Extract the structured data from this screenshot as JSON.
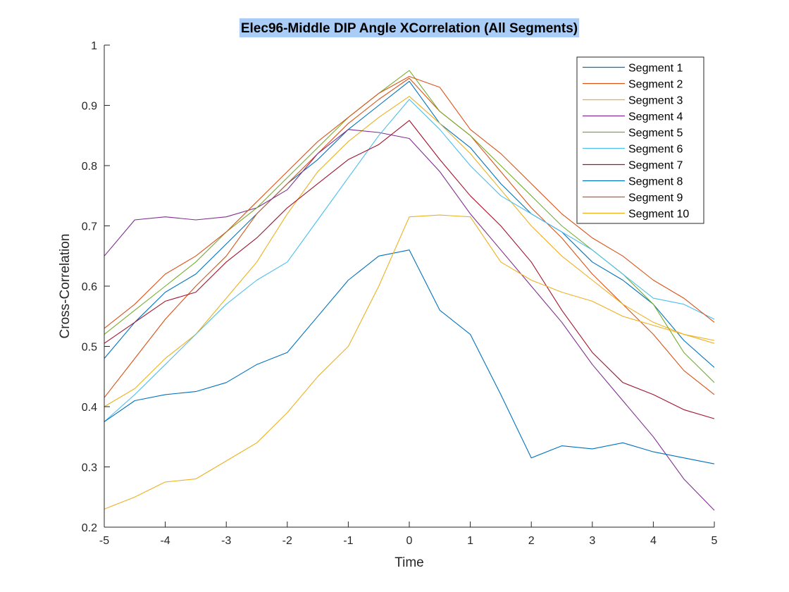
{
  "chart_data": {
    "type": "line",
    "title": "Elec96-Middle DIP Angle XCorrelation (All Segments)",
    "title_highlight_color": "#a9cdf7",
    "xlabel": "Time",
    "ylabel": "Cross-Correlation",
    "xlim": [
      -5,
      5
    ],
    "ylim": [
      0.2,
      1
    ],
    "xticks": [
      -5,
      -4,
      -3,
      -2,
      -1,
      0,
      1,
      2,
      3,
      4,
      5
    ],
    "xtick_labels": [
      "-5",
      "-4",
      "-3",
      "-2",
      "-1",
      "0",
      "1",
      "2",
      "3",
      "4",
      "5"
    ],
    "yticks": [
      0.2,
      0.3,
      0.4,
      0.5,
      0.6,
      0.7,
      0.8,
      0.9,
      1
    ],
    "ytick_labels": [
      "0.2",
      "0.3",
      "0.4",
      "0.5",
      "0.6",
      "0.7",
      "0.8",
      "0.9",
      "1"
    ],
    "grid": false,
    "legend_position": "top-right",
    "x": [
      -5,
      -4.5,
      -4,
      -3.5,
      -3,
      -2.5,
      -2,
      -1.5,
      -1,
      -0.5,
      0,
      0.5,
      1,
      1.5,
      2,
      2.5,
      3,
      3.5,
      4,
      4.5,
      5
    ],
    "series": [
      {
        "name": "Segment 1",
        "color": "#0072bd",
        "values": [
          0.48,
          0.54,
          0.59,
          0.62,
          0.67,
          0.72,
          0.77,
          0.81,
          0.86,
          0.9,
          0.94,
          0.87,
          0.83,
          0.77,
          0.72,
          0.69,
          0.64,
          0.61,
          0.57,
          0.51,
          0.465
        ]
      },
      {
        "name": "Segment 2",
        "color": "#d95319",
        "values": [
          0.415,
          0.48,
          0.545,
          0.6,
          0.65,
          0.72,
          0.77,
          0.82,
          0.87,
          0.91,
          0.945,
          0.89,
          0.85,
          0.79,
          0.73,
          0.68,
          0.62,
          0.57,
          0.52,
          0.46,
          0.42
        ]
      },
      {
        "name": "Segment 3",
        "color": "#edb120",
        "values": [
          0.4,
          0.43,
          0.48,
          0.52,
          0.58,
          0.64,
          0.72,
          0.79,
          0.84,
          0.88,
          0.915,
          0.87,
          0.82,
          0.76,
          0.7,
          0.65,
          0.61,
          0.57,
          0.54,
          0.52,
          0.51
        ]
      },
      {
        "name": "Segment 4",
        "color": "#7e2f8e",
        "values": [
          0.65,
          0.71,
          0.715,
          0.71,
          0.715,
          0.73,
          0.76,
          0.82,
          0.86,
          0.855,
          0.845,
          0.79,
          0.72,
          0.66,
          0.6,
          0.54,
          0.47,
          0.41,
          0.35,
          0.28,
          0.228
        ]
      },
      {
        "name": "Segment 5",
        "color": "#77ac30",
        "values": [
          0.52,
          0.56,
          0.6,
          0.64,
          0.69,
          0.73,
          0.78,
          0.83,
          0.88,
          0.92,
          0.958,
          0.89,
          0.85,
          0.8,
          0.75,
          0.7,
          0.66,
          0.62,
          0.57,
          0.49,
          0.44
        ]
      },
      {
        "name": "Segment 6",
        "color": "#4dbeee",
        "values": [
          0.375,
          0.42,
          0.47,
          0.52,
          0.57,
          0.61,
          0.64,
          0.71,
          0.78,
          0.85,
          0.91,
          0.86,
          0.8,
          0.75,
          0.72,
          0.69,
          0.66,
          0.62,
          0.58,
          0.57,
          0.545
        ]
      },
      {
        "name": "Segment 7",
        "color": "#a2142f",
        "values": [
          0.505,
          0.54,
          0.575,
          0.59,
          0.64,
          0.68,
          0.73,
          0.77,
          0.81,
          0.835,
          0.875,
          0.81,
          0.75,
          0.7,
          0.64,
          0.56,
          0.49,
          0.44,
          0.42,
          0.395,
          0.38
        ]
      },
      {
        "name": "Segment 8",
        "color": "#0072bd",
        "values": [
          0.375,
          0.41,
          0.42,
          0.425,
          0.44,
          0.47,
          0.49,
          0.55,
          0.61,
          0.65,
          0.66,
          0.56,
          0.52,
          0.42,
          0.315,
          0.335,
          0.33,
          0.34,
          0.325,
          0.315,
          0.305
        ]
      },
      {
        "name": "Segment 9",
        "color": "#d95319",
        "values": [
          0.53,
          0.57,
          0.62,
          0.65,
          0.69,
          0.74,
          0.79,
          0.84,
          0.88,
          0.92,
          0.948,
          0.93,
          0.86,
          0.82,
          0.77,
          0.72,
          0.68,
          0.65,
          0.61,
          0.58,
          0.54
        ]
      },
      {
        "name": "Segment 10",
        "color": "#edb120",
        "values": [
          0.23,
          0.25,
          0.275,
          0.28,
          0.31,
          0.34,
          0.39,
          0.45,
          0.5,
          0.6,
          0.715,
          0.718,
          0.715,
          0.64,
          0.61,
          0.59,
          0.575,
          0.55,
          0.535,
          0.52,
          0.505
        ]
      }
    ]
  }
}
